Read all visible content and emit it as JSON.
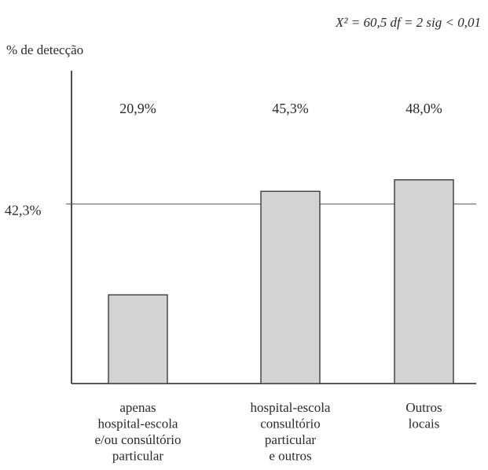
{
  "chart_data": {
    "type": "bar",
    "annotation": "X² = 60,5 df = 2 sig < 0,01",
    "ylabel": "% de detecção",
    "ylim": [
      0,
      64
    ],
    "grid": false,
    "categories": [
      [
        "apenas",
        "hospital-escola",
        "e/ou consúltório",
        "particular"
      ],
      [
        "hospital-escola",
        "consultório",
        "particular",
        "e outros"
      ],
      [
        "Outros",
        "locais"
      ]
    ],
    "values": [
      20.9,
      45.3,
      48.0
    ],
    "value_labels": [
      "20,9%",
      "45,3%",
      "48,0%"
    ],
    "reference_line": {
      "value": 42.3,
      "label": "42,3%"
    }
  }
}
